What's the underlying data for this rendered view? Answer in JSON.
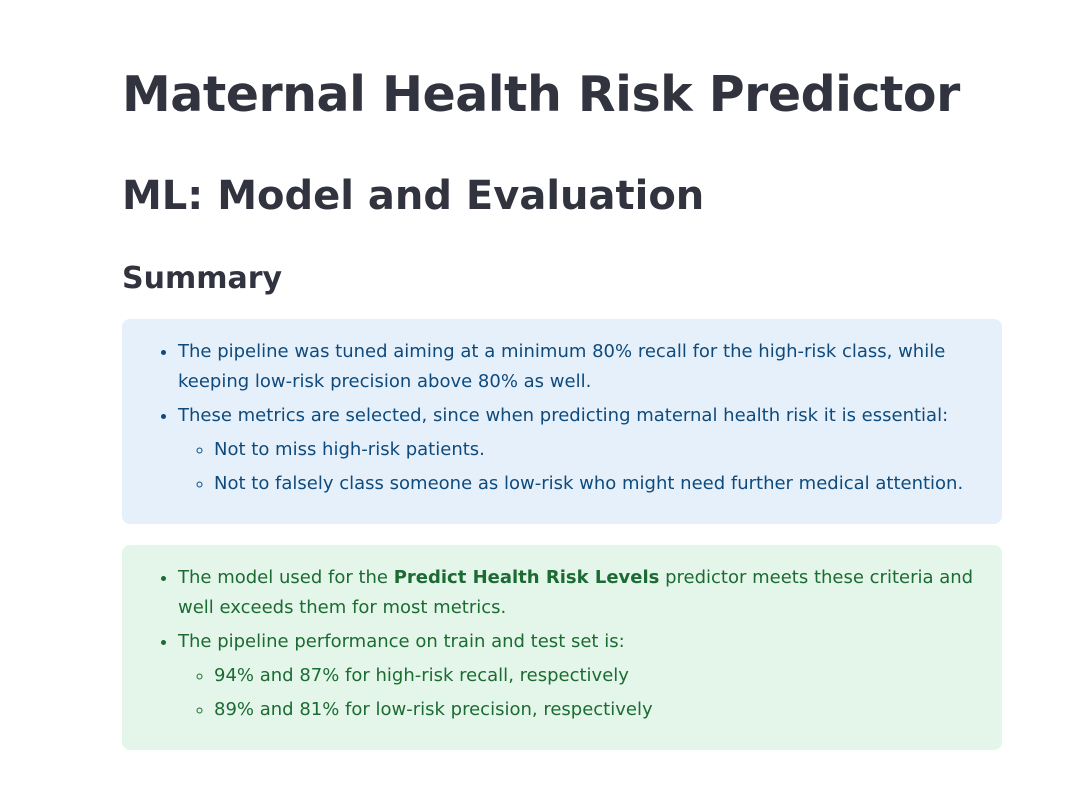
{
  "header": {
    "title": "Maternal Health Risk Predictor",
    "section": "ML: Model and Evaluation",
    "subsection": "Summary"
  },
  "info_alert": {
    "bullet_1": "The pipeline was tuned aiming at a minimum 80% recall for the high-risk class, while keeping low-risk precision above 80% as well.",
    "bullet_2": "These metrics are selected, since when predicting maternal health risk it is essential:",
    "sub_bullets": [
      "Not to miss high-risk patients.",
      "Not to falsely class someone as low-risk who might need further medical attention."
    ]
  },
  "success_alert": {
    "bullet_1_prefix": "The model used for the ",
    "bullet_1_bold": "Predict Health Risk Levels",
    "bullet_1_suffix": " predictor meets these criteria and well exceeds them for most metrics.",
    "bullet_2": "The pipeline performance on train and test set is:",
    "sub_bullets": [
      "94% and 87% for high-risk recall, respectively",
      "89% and 81% for low-risk precision, respectively"
    ]
  },
  "colors": {
    "info_bg": "#e6f0fb",
    "info_text": "#0e4a7c",
    "success_bg": "#e4f6e9",
    "success_text": "#1b6b33",
    "heading_text": "#31333f"
  }
}
